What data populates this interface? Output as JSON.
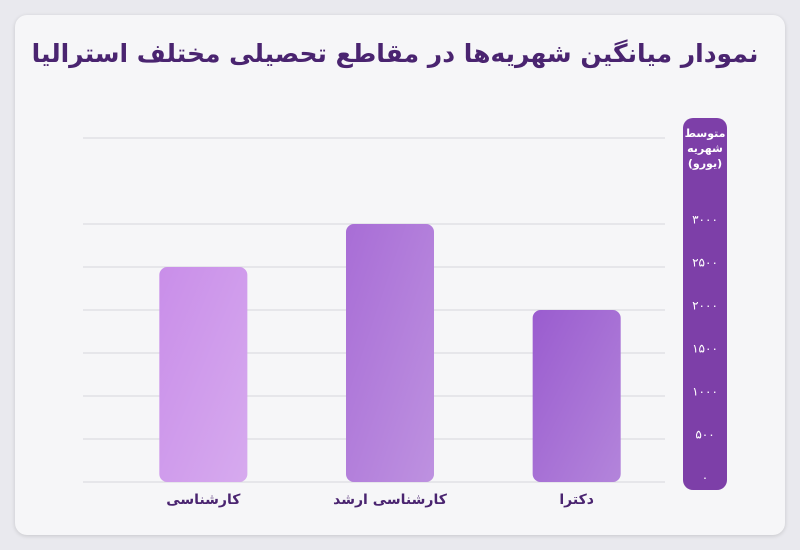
{
  "chart_data": {
    "type": "bar",
    "title": "نمودار میانگین شهریه‌ها در مقاطع تحصیلی مختلف استرالیا",
    "y_label": "متوسط شهریه (یورو)",
    "categories": [
      "کارشناسی",
      "کارشناسی ارشد",
      "دکترا"
    ],
    "values": [
      2500,
      3000,
      2000
    ],
    "colors": [
      "#c98ee9",
      "#a86dd6",
      "#9a5ccf"
    ],
    "ylim": [
      0,
      4000
    ],
    "yticks": [
      {
        "value": 0,
        "label": "۰"
      },
      {
        "value": 500,
        "label": "۵۰۰"
      },
      {
        "value": 1000,
        "label": "۱۰۰۰"
      },
      {
        "value": 1500,
        "label": "۱۵۰۰"
      },
      {
        "value": 2000,
        "label": "۲۰۰۰"
      },
      {
        "value": 2500,
        "label": "۲۵۰۰"
      },
      {
        "value": 3000,
        "label": "۳۰۰۰"
      }
    ],
    "grid": true
  }
}
